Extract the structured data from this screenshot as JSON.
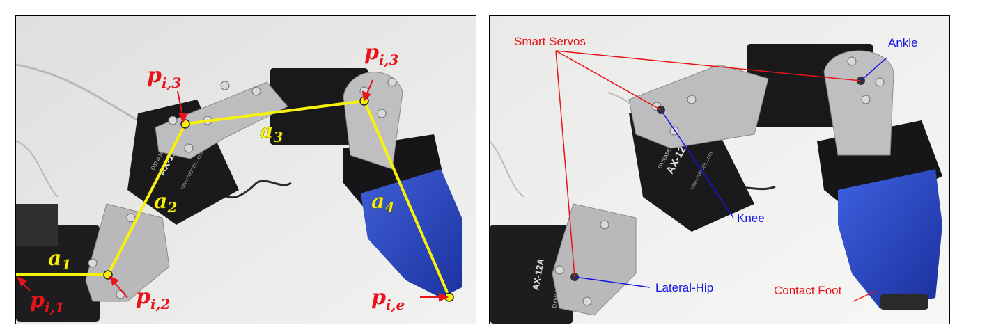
{
  "left_panel": {
    "symbols": [
      {
        "base": "p",
        "sub": "i,3",
        "color": "#e8141a"
      },
      {
        "base": "p",
        "sub": "i,3",
        "color": "#e8141a"
      },
      {
        "base": "p",
        "sub": "i,1",
        "color": "#e8141a"
      },
      {
        "base": "p",
        "sub": "i,2",
        "color": "#e8141a"
      },
      {
        "base": "p",
        "sub": "i,e",
        "color": "#e8141a"
      }
    ],
    "links": [
      {
        "base": "a",
        "sub": "1"
      },
      {
        "base": "a",
        "sub": "2"
      },
      {
        "base": "a",
        "sub": "3"
      },
      {
        "base": "a",
        "sub": "4"
      }
    ],
    "servo_text": {
      "brand": "DYNAMIXEL",
      "model": "AX-12A",
      "url": "www.robotis.com"
    },
    "colors": {
      "link_line": "#f7f20a",
      "pointer": "#e8141a",
      "joint": "#f7f20a"
    }
  },
  "right_panel": {
    "labels": {
      "smart_servos": "Smart Servos",
      "ankle": "Ankle",
      "knee": "Knee",
      "lateral_hip": "Lateral-Hip",
      "contact_foot": "Contact Foot"
    },
    "servo_text": {
      "brand": "DYNAMIXEL",
      "model": "AX-12A",
      "url": "www.robotis.com",
      "model_lower": "AX-12A",
      "brand_lower": "DYNAMIXEL"
    },
    "colors": {
      "red": "#e8141a",
      "blue": "#1414e6"
    }
  }
}
